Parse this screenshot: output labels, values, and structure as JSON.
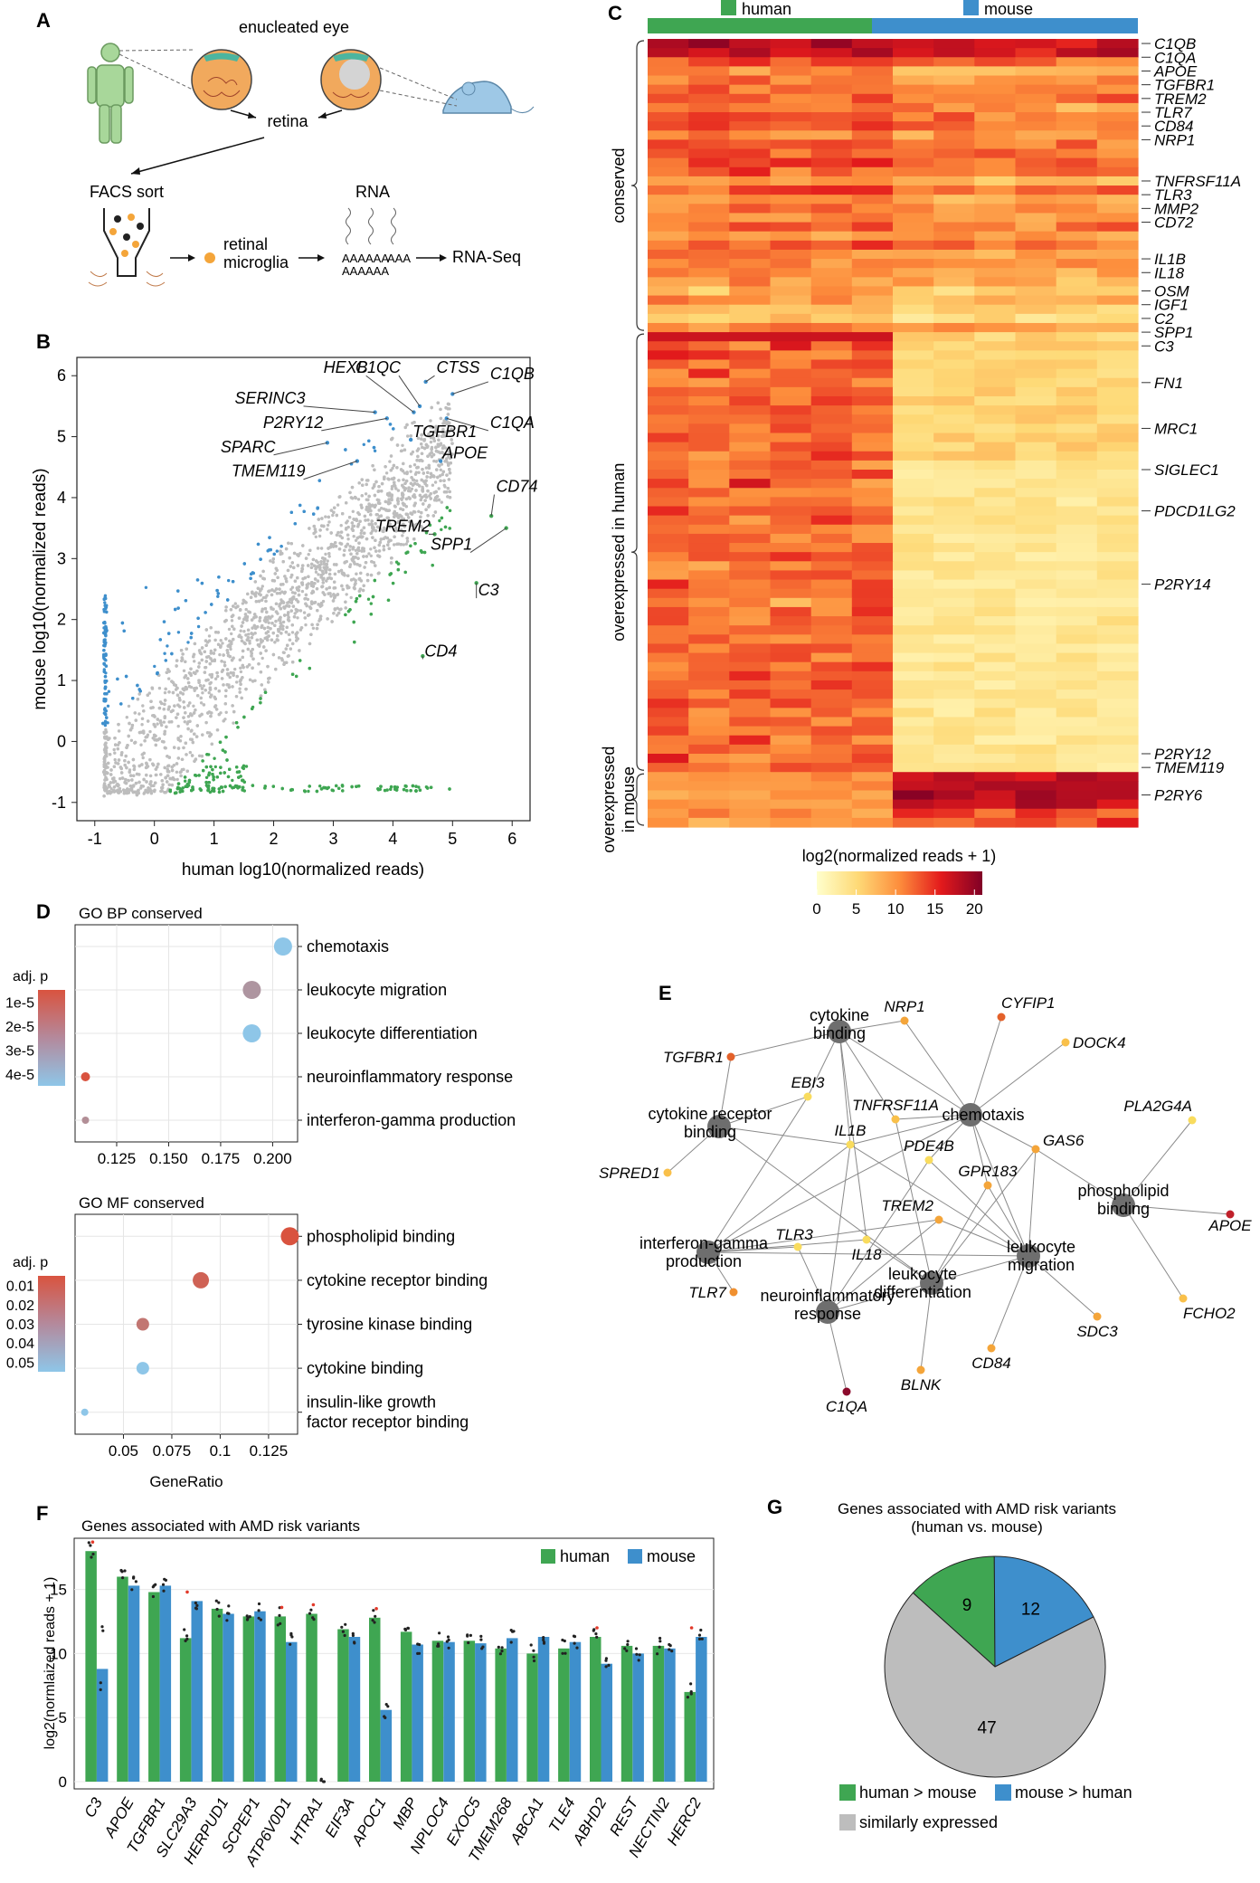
{
  "panel_letters": {
    "a": "A",
    "b": "B",
    "c": "C",
    "d": "D",
    "e": "E",
    "f": "F",
    "g": "G"
  },
  "panel_a": {
    "enucleated_eye": "enucleated eye",
    "retina": "retina",
    "facs_sort": "FACS sort",
    "rna": "RNA",
    "retinal": "retinal",
    "microglia": "microglia",
    "rna_seq": "RNA-Seq",
    "aaa": "AAA"
  },
  "colors": {
    "human_green": "#3fa652",
    "mouse_blue": "#3e8fcc",
    "grey_points": "#bdbdbd",
    "red_accent": "#d94f3a"
  },
  "chart_data": [
    {
      "id": "B",
      "type": "scatter",
      "xlabel": "human log10(normalized reads)",
      "ylabel": "mouse log10(normalized reads)",
      "xlim": [
        -1.3,
        6.3
      ],
      "ylim": [
        -1.3,
        6.3
      ],
      "xticks": [
        "-1",
        "0",
        "1",
        "2",
        "3",
        "4",
        "5",
        "6"
      ],
      "yticks": [
        "-1",
        "0",
        "1",
        "2",
        "3",
        "4",
        "5",
        "6"
      ],
      "series": [
        {
          "name": "mouse > human",
          "color": "#3e8fcc"
        },
        {
          "name": "similar",
          "color": "#bdbdbd"
        },
        {
          "name": "human > mouse",
          "color": "#3fa652"
        }
      ],
      "annotations": [
        {
          "gene": "HEXB",
          "x": 4.35,
          "y": 5.4,
          "tx": 3.55,
          "ty": 6.0
        },
        {
          "gene": "C1QC",
          "x": 4.45,
          "y": 5.5,
          "tx": 4.1,
          "ty": 6.0
        },
        {
          "gene": "CTSS",
          "x": 4.55,
          "y": 5.9,
          "tx": 4.7,
          "ty": 6.0
        },
        {
          "gene": "C1QB",
          "x": 5.0,
          "y": 5.7,
          "tx": 5.6,
          "ty": 5.9
        },
        {
          "gene": "SERINC3",
          "x": 3.7,
          "y": 5.4,
          "tx": 2.5,
          "ty": 5.5
        },
        {
          "gene": "P2RY12",
          "x": 3.9,
          "y": 5.3,
          "tx": 2.8,
          "ty": 5.1
        },
        {
          "gene": "C1QA",
          "x": 4.9,
          "y": 5.3,
          "tx": 5.6,
          "ty": 5.1
        },
        {
          "gene": "SPARC",
          "x": 2.9,
          "y": 4.9,
          "tx": 2.0,
          "ty": 4.7
        },
        {
          "gene": "TGFBR1",
          "x": 4.3,
          "y": 4.95,
          "tx": 4.3,
          "ty": 4.95
        },
        {
          "gene": "APOE",
          "x": 4.8,
          "y": 4.6,
          "tx": 4.8,
          "ty": 4.6
        },
        {
          "gene": "TMEM119",
          "x": 3.4,
          "y": 4.6,
          "tx": 2.5,
          "ty": 4.3
        },
        {
          "gene": "CD74",
          "x": 5.65,
          "y": 3.7,
          "tx": 5.7,
          "ty": 4.05
        },
        {
          "gene": "TREM2",
          "x": 4.7,
          "y": 3.4,
          "tx": 4.6,
          "ty": 3.4
        },
        {
          "gene": "SPP1",
          "x": 5.9,
          "y": 3.5,
          "tx": 5.3,
          "ty": 3.1
        },
        {
          "gene": "C3",
          "x": 5.4,
          "y": 2.6,
          "tx": 5.4,
          "ty": 2.35
        },
        {
          "gene": "CD4",
          "x": 4.5,
          "y": 1.4,
          "tx": 4.5,
          "ty": 1.35
        }
      ]
    },
    {
      "id": "C",
      "type": "heatmap",
      "groups": [
        "human",
        "mouse"
      ],
      "row_groups": [
        "conserved",
        "overexpressed in human",
        "overexpressed in mouse"
      ],
      "row_groups_display": [
        [
          "conserved"
        ],
        [
          "overexpressed in human"
        ],
        [
          "overexpressed",
          "in mouse"
        ]
      ],
      "colorbar_title": "log2(normalized reads + 1)",
      "colorbar_ticks": [
        "0",
        "5",
        "10",
        "15",
        "20"
      ],
      "colorbar_range": [
        0,
        21
      ],
      "gene_labels": [
        {
          "gene": "C1QB",
          "row": 0.5
        },
        {
          "gene": "C1QA",
          "row": 2.0
        },
        {
          "gene": "APOE",
          "row": 3.5
        },
        {
          "gene": "TGFBR1",
          "row": 5.0
        },
        {
          "gene": "TREM2",
          "row": 6.5
        },
        {
          "gene": "TLR7",
          "row": 8.0
        },
        {
          "gene": "CD84",
          "row": 9.5
        },
        {
          "gene": "NRP1",
          "row": 11.0
        },
        {
          "gene": "TNFRSF11A",
          "row": 15.5
        },
        {
          "gene": "TLR3",
          "row": 17.0
        },
        {
          "gene": "MMP2",
          "row": 18.5
        },
        {
          "gene": "CD72",
          "row": 20.0
        },
        {
          "gene": "IL1B",
          "row": 24.0
        },
        {
          "gene": "IL18",
          "row": 25.5
        },
        {
          "gene": "OSM",
          "row": 27.5
        },
        {
          "gene": "IGF1",
          "row": 29.0
        },
        {
          "gene": "C2",
          "row": 30.5
        },
        {
          "gene": "SPP1",
          "row": 32.0
        },
        {
          "gene": "C3",
          "row": 33.5
        },
        {
          "gene": "FN1",
          "row": 37.5
        },
        {
          "gene": "MRC1",
          "row": 42.5
        },
        {
          "gene": "SIGLEC1",
          "row": 47.0
        },
        {
          "gene": "PDCD1LG2",
          "row": 51.5
        },
        {
          "gene": "P2RY14",
          "row": 59.5
        },
        {
          "gene": "P2RY12",
          "row": 78.0
        },
        {
          "gene": "TMEM119",
          "row": 79.5
        },
        {
          "gene": "P2RY6",
          "row": 82.5
        }
      ]
    },
    {
      "id": "D1",
      "type": "scatter",
      "title": "GO BP conserved",
      "legend_title": "adj. p",
      "legend_ticks": [
        "1e-5",
        "2e-5",
        "3e-5",
        "4e-5"
      ],
      "categories": [
        "chemotaxis",
        "leukocyte migration",
        "leukocyte differentiation",
        "neuroinflammatory response",
        "interferon-gamma production"
      ],
      "x": [
        0.205,
        0.19,
        0.19,
        0.11,
        0.11
      ],
      "padj": [
        4.5e-05,
        3e-05,
        4.5e-05,
        1e-05,
        2.8e-05
      ],
      "xticks": [
        "0.125",
        "0.150",
        "0.175",
        "0.200"
      ],
      "xlim": [
        0.105,
        0.212
      ]
    },
    {
      "id": "D2",
      "type": "scatter",
      "title": "GO MF conserved",
      "legend_title": "adj. p",
      "legend_ticks": [
        "0.01",
        "0.02",
        "0.03",
        "0.04",
        "0.05"
      ],
      "categories": [
        "phospholipid binding",
        "cytokine receptor binding",
        "tyrosine kinase binding",
        "cytokine binding",
        "insulin-like growth factor receptor binding"
      ],
      "categories_display": [
        [
          "phospholipid binding"
        ],
        [
          "cytokine receptor binding"
        ],
        [
          "tyrosine kinase binding"
        ],
        [
          "cytokine binding"
        ],
        [
          "insulin-like growth",
          "factor receptor binding"
        ]
      ],
      "x": [
        0.136,
        0.09,
        0.06,
        0.06,
        0.03
      ],
      "padj": [
        0.004,
        0.01,
        0.018,
        0.05,
        0.05
      ],
      "xlabel": "GeneRatio",
      "xticks": [
        "0.05",
        "0.075",
        "0.1",
        "0.125"
      ],
      "xlim": [
        0.025,
        0.14
      ]
    },
    {
      "id": "E",
      "type": "network",
      "hubs": [
        "cytokine binding",
        "cytokine receptor binding",
        "chemotaxis",
        "phospholipid binding",
        "interferon-gamma production",
        "leukocyte migration",
        "leukocyte differentiation",
        "neuroinflammatory response"
      ],
      "hubs_display": [
        [
          "cytokine",
          "binding"
        ],
        [
          "cytokine receptor",
          "binding"
        ],
        [
          "chemotaxis"
        ],
        [
          "phospholipid",
          "binding"
        ],
        [
          "interferon-gamma",
          "production"
        ],
        [
          "leukocyte",
          "migration"
        ],
        [
          "leukocyte",
          "differentiation"
        ],
        [
          "neuroinflammatory",
          "response"
        ]
      ],
      "genes": [
        "NRP1",
        "CYFIP1",
        "DOCK4",
        "TGFBR1",
        "EBI3",
        "TNFRSF11A",
        "PLA2G4A",
        "SPRED1",
        "IL1B",
        "PDE4B",
        "GAS6",
        "GPR183",
        "APOE",
        "TREM2",
        "IL18",
        "TLR3",
        "TLR7",
        "SDC3",
        "FCHO2",
        "CD84",
        "BLNK",
        "C1QA"
      ]
    },
    {
      "id": "F",
      "type": "bar",
      "title": "Genes associated with AMD risk variants",
      "ylabel": "log2(normlaized reads + 1)",
      "ylim": [
        0,
        19
      ],
      "yticks": [
        "0",
        "5",
        "10",
        "15"
      ],
      "categories": [
        "C3",
        "APOE",
        "TGFBR1",
        "SLC29A3",
        "HERPUD1",
        "SCPEP1",
        "ATP6V0D1",
        "HTRA1",
        "EIF3A",
        "APOC1",
        "MBP",
        "NPLOC4",
        "EXOC5",
        "TMEM268",
        "ABCA1",
        "TLE4",
        "ABHD2",
        "REST",
        "NECTIN2",
        "HERC2"
      ],
      "series": [
        {
          "name": "human",
          "values": [
            18.0,
            16.0,
            14.8,
            11.2,
            13.5,
            12.9,
            12.9,
            13.1,
            11.9,
            12.8,
            11.7,
            11.0,
            11.0,
            10.4,
            10.0,
            10.4,
            11.3,
            10.6,
            10.6,
            7.0
          ]
        },
        {
          "name": "mouse",
          "values": [
            8.8,
            15.3,
            15.3,
            14.1,
            13.1,
            13.3,
            10.9,
            0.0,
            11.3,
            5.6,
            10.7,
            10.9,
            10.8,
            11.2,
            11.3,
            10.9,
            9.2,
            10.0,
            10.4,
            11.3
          ]
        }
      ],
      "red_marks": [
        "C3",
        "SLC29A3",
        "ATP6V0D1",
        "HTRA1",
        "APOC1",
        "ABHD2",
        "HERC2"
      ]
    },
    {
      "id": "G",
      "type": "pie",
      "title": "Genes associated with AMD risk variants",
      "subtitle": "(human vs. mouse)",
      "labels": [
        "human > mouse",
        "mouse > human",
        "similarly expressed"
      ],
      "values": [
        9,
        12,
        47
      ],
      "value_labels": [
        "9",
        "12",
        "47"
      ],
      "colors": [
        "#3fa652",
        "#3e8fcc",
        "#bdbdbd"
      ]
    }
  ]
}
